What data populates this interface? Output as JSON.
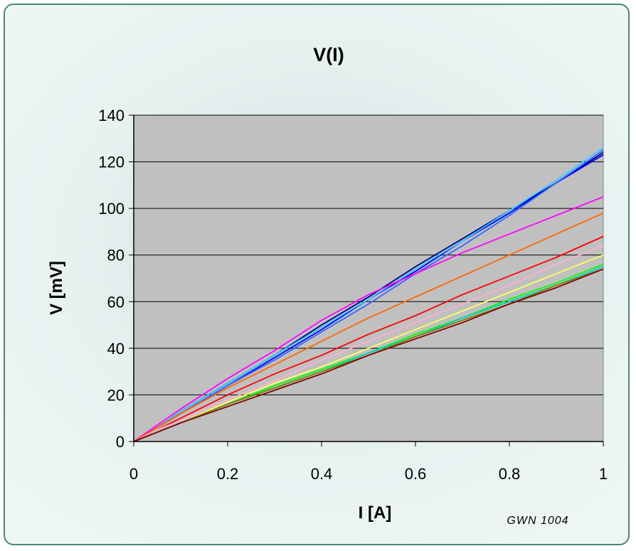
{
  "chart_data": {
    "type": "line",
    "title": "V(I)",
    "xlabel": "I [A]",
    "ylabel": "V [mV]",
    "xlim": [
      0,
      1
    ],
    "ylim": [
      0,
      140
    ],
    "x_ticks": [
      "0",
      "0.2",
      "0.4",
      "0.6",
      "0.8",
      "1"
    ],
    "y_ticks": [
      "0",
      "20",
      "40",
      "60",
      "80",
      "100",
      "120",
      "140"
    ],
    "grid": "horizontal",
    "plot_background": "#c0c0c0",
    "annotation": "GWN 1004",
    "x": [
      0,
      0.05,
      0.1,
      0.2,
      0.3,
      0.4,
      0.5,
      0.6,
      0.7,
      0.8,
      0.9,
      1.0
    ],
    "series": [
      {
        "color": "#000080",
        "values": [
          0,
          6,
          13,
          25,
          37,
          50,
          62,
          75,
          87,
          99,
          111,
          124
        ]
      },
      {
        "color": "#0000ff",
        "values": [
          0,
          6,
          12,
          24,
          36,
          48,
          61,
          73,
          86,
          98,
          111,
          123
        ]
      },
      {
        "color": "#33ccff",
        "values": [
          0,
          6,
          13,
          25,
          37,
          49,
          61,
          74,
          86,
          99,
          112,
          126
        ]
      },
      {
        "color": "#3366ff",
        "values": [
          0,
          6,
          12,
          24,
          35,
          47,
          59,
          72,
          84,
          97,
          111,
          125
        ]
      },
      {
        "color": "#ff00ff",
        "values": [
          0,
          7,
          14,
          27,
          39,
          52,
          63,
          72,
          81,
          89,
          97,
          105
        ]
      },
      {
        "color": "#ff6600",
        "values": [
          0,
          6,
          12,
          23,
          33,
          43,
          53,
          62,
          71,
          80,
          89,
          98
        ]
      },
      {
        "color": "#ff0000",
        "values": [
          0,
          5,
          10,
          20,
          29,
          37,
          46,
          54,
          63,
          71,
          79,
          88
        ]
      },
      {
        "color": "#ffb0d0",
        "values": [
          0,
          5,
          9,
          18,
          26,
          35,
          43,
          51,
          59,
          67,
          76,
          84
        ]
      },
      {
        "color": "#ffff66",
        "values": [
          0,
          4,
          8,
          17,
          25,
          32,
          40,
          48,
          56,
          64,
          72,
          80
        ]
      },
      {
        "color": "#00ff00",
        "values": [
          0,
          4,
          8,
          16,
          24,
          31,
          38,
          46,
          53,
          61,
          68,
          76
        ]
      },
      {
        "color": "#00cccc",
        "values": [
          0,
          4,
          8,
          16,
          23,
          30,
          38,
          45,
          53,
          60,
          67,
          75
        ]
      },
      {
        "color": "#808000",
        "values": [
          0,
          4,
          8,
          16,
          23,
          30,
          37,
          45,
          52,
          59,
          67,
          74
        ]
      },
      {
        "color": "#800000",
        "values": [
          0,
          4,
          8,
          15,
          22,
          29,
          37,
          44,
          51,
          59,
          66,
          74
        ]
      }
    ]
  }
}
